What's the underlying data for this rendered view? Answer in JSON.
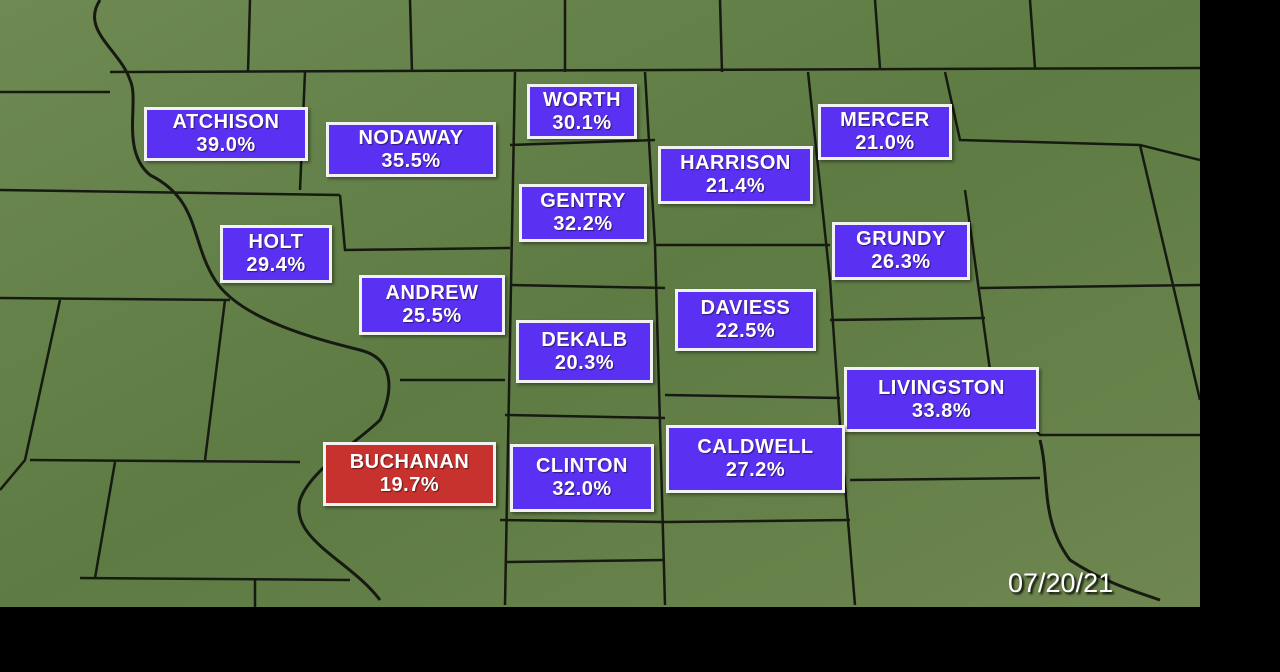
{
  "date": "07/20/21",
  "counties": [
    {
      "name": "ATCHISON",
      "value": "39.0%"
    },
    {
      "name": "NODAWAY",
      "value": "35.5%"
    },
    {
      "name": "WORTH",
      "value": "30.1%"
    },
    {
      "name": "GENTRY",
      "value": "32.2%"
    },
    {
      "name": "HARRISON",
      "value": "21.4%"
    },
    {
      "name": "MERCER",
      "value": "21.0%"
    },
    {
      "name": "HOLT",
      "value": "29.4%"
    },
    {
      "name": "GRUNDY",
      "value": "26.3%"
    },
    {
      "name": "ANDREW",
      "value": "25.5%"
    },
    {
      "name": "DAVIESS",
      "value": "22.5%"
    },
    {
      "name": "DEKALB",
      "value": "20.3%"
    },
    {
      "name": "LIVINGSTON",
      "value": "33.8%"
    },
    {
      "name": "BUCHANAN",
      "value": "19.7%"
    },
    {
      "name": "CLINTON",
      "value": "32.0%"
    },
    {
      "name": "CALDWELL",
      "value": "27.2%"
    }
  ]
}
